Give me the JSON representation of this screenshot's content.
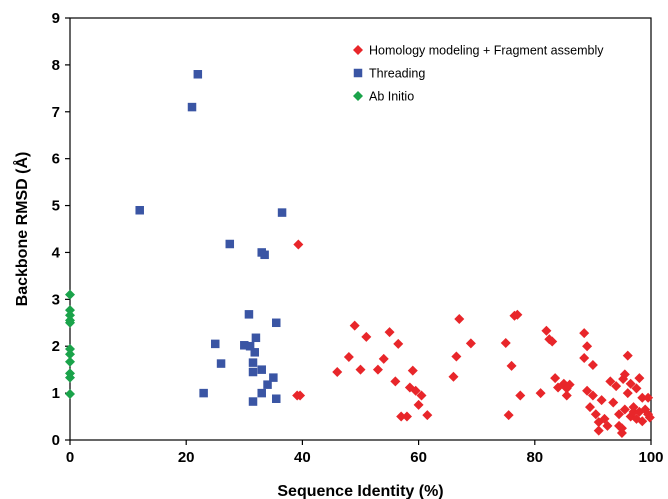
{
  "chart_data": {
    "type": "scatter",
    "title": "",
    "xlabel": "Sequence Identity (%)",
    "ylabel": "Backbone RMSD (Å)",
    "xlim": [
      0,
      100
    ],
    "ylim": [
      0,
      9
    ],
    "x_ticks": [
      0,
      20,
      40,
      60,
      80,
      100
    ],
    "y_ticks": [
      0,
      1,
      2,
      3,
      4,
      5,
      6,
      7,
      8,
      9
    ],
    "grid": false,
    "legend_position": "top-right",
    "series": [
      {
        "name": "Homology modeling + Fragment assembly",
        "color": "#e8262a",
        "marker": "diamond",
        "points": [
          [
            39.3,
            4.17
          ],
          [
            39.1,
            0.95
          ],
          [
            39.6,
            0.95
          ],
          [
            46,
            1.45
          ],
          [
            48,
            1.77
          ],
          [
            49,
            2.44
          ],
          [
            50,
            1.5
          ],
          [
            51,
            2.2
          ],
          [
            53,
            1.5
          ],
          [
            54,
            1.73
          ],
          [
            55,
            2.3
          ],
          [
            56,
            1.25
          ],
          [
            56.5,
            2.05
          ],
          [
            57,
            0.5
          ],
          [
            58,
            0.5
          ],
          [
            58.5,
            1.12
          ],
          [
            59,
            1.48
          ],
          [
            59.5,
            1.05
          ],
          [
            60,
            0.75
          ],
          [
            60.5,
            0.95
          ],
          [
            61.5,
            0.53
          ],
          [
            66,
            1.35
          ],
          [
            66.5,
            1.78
          ],
          [
            67,
            2.58
          ],
          [
            69,
            2.06
          ],
          [
            75,
            2.07
          ],
          [
            75.5,
            0.53
          ],
          [
            76,
            1.58
          ],
          [
            76.5,
            2.65
          ],
          [
            77,
            2.67
          ],
          [
            77.5,
            0.95
          ],
          [
            81,
            1.0
          ],
          [
            82,
            2.33
          ],
          [
            82.5,
            2.15
          ],
          [
            83,
            2.1
          ],
          [
            83.5,
            1.32
          ],
          [
            84,
            1.12
          ],
          [
            85,
            1.2
          ],
          [
            85.5,
            1.1
          ],
          [
            86,
            1.18
          ],
          [
            85.5,
            0.95
          ],
          [
            88.5,
            2.28
          ],
          [
            88.5,
            1.75
          ],
          [
            89,
            2.0
          ],
          [
            89,
            1.05
          ],
          [
            89.5,
            0.7
          ],
          [
            90,
            1.6
          ],
          [
            90,
            0.95
          ],
          [
            90.5,
            0.55
          ],
          [
            91,
            0.2
          ],
          [
            91,
            0.38
          ],
          [
            91.5,
            0.85
          ],
          [
            92,
            0.45
          ],
          [
            92.5,
            0.3
          ],
          [
            93,
            1.25
          ],
          [
            93.5,
            0.8
          ],
          [
            94,
            1.15
          ],
          [
            94.5,
            0.3
          ],
          [
            94.5,
            0.55
          ],
          [
            95,
            0.15
          ],
          [
            95,
            0.25
          ],
          [
            95.2,
            1.3
          ],
          [
            95.5,
            1.4
          ],
          [
            95.5,
            0.65
          ],
          [
            96,
            1.0
          ],
          [
            96,
            1.8
          ],
          [
            96.5,
            1.2
          ],
          [
            96.5,
            0.5
          ],
          [
            97,
            0.7
          ],
          [
            97,
            0.6
          ],
          [
            97.5,
            0.45
          ],
          [
            97.5,
            1.1
          ],
          [
            98,
            1.32
          ],
          [
            98,
            0.6
          ],
          [
            98.5,
            0.9
          ],
          [
            98.5,
            0.4
          ],
          [
            99,
            0.65
          ],
          [
            99.5,
            0.9
          ],
          [
            99.5,
            0.55
          ],
          [
            99.8,
            0.48
          ]
        ]
      },
      {
        "name": "Threading",
        "color": "#3a55a4",
        "marker": "square",
        "points": [
          [
            12,
            4.9
          ],
          [
            21,
            7.1
          ],
          [
            22,
            7.8
          ],
          [
            23,
            1.0
          ],
          [
            25,
            2.05
          ],
          [
            26,
            1.63
          ],
          [
            27.5,
            4.18
          ],
          [
            30,
            2.02
          ],
          [
            30.8,
            2.68
          ],
          [
            31,
            2.0
          ],
          [
            31.5,
            0.82
          ],
          [
            31.5,
            1.45
          ],
          [
            31.5,
            1.65
          ],
          [
            31.8,
            1.87
          ],
          [
            32,
            2.18
          ],
          [
            33,
            4.0
          ],
          [
            33,
            1.5
          ],
          [
            33,
            1.0
          ],
          [
            33.5,
            3.95
          ],
          [
            34,
            1.18
          ],
          [
            35,
            1.33
          ],
          [
            35.5,
            2.5
          ],
          [
            35.5,
            0.88
          ],
          [
            36.5,
            4.85
          ]
        ]
      },
      {
        "name": "Ab Initio",
        "color": "#1aa34a",
        "marker": "diamond",
        "points": [
          [
            0,
            3.1
          ],
          [
            0,
            2.77
          ],
          [
            0,
            2.66
          ],
          [
            0,
            2.55
          ],
          [
            0,
            2.5
          ],
          [
            0,
            1.94
          ],
          [
            0,
            1.83
          ],
          [
            0,
            1.67
          ],
          [
            0,
            1.42
          ],
          [
            0,
            1.33
          ],
          [
            0,
            0.98
          ]
        ]
      }
    ]
  }
}
